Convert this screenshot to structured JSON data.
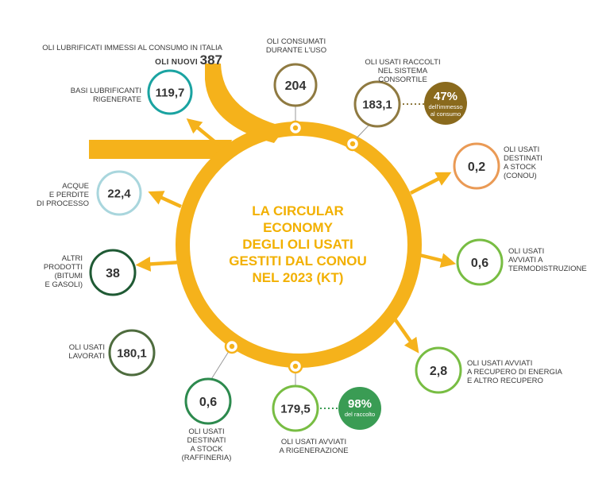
{
  "colors": {
    "ring": "#f5b21b",
    "gold_text": "#f2b000",
    "brown": "#8f7a41",
    "teal": "#1aa3a1",
    "light_blue": "#a9d6dd",
    "orange": "#ea9a55",
    "light_green": "#78bd43",
    "dark_green": "#1f5a34",
    "olive_green": "#4e6c3e",
    "green": "#2d8a4e",
    "badge_brown": "#8a6a1d",
    "badge_green": "#3a9c54"
  },
  "top_source": {
    "title": "OLI LUBRIFICATI IMMESSI AL CONSUMO IN ITALIA",
    "sub_label": "OLI NUOVI",
    "value": "387"
  },
  "center_title": [
    "LA CIRCULAR",
    "ECONOMY",
    "DEGLI OLI USATI",
    "GESTITI DAL CONOU",
    "NEL 2023 (Kt)"
  ],
  "nodes": [
    {
      "id": "consumati",
      "value": "204",
      "label": [
        "OLI CONSUMATI",
        "DURANTE L'USO"
      ],
      "color": "brown"
    },
    {
      "id": "raccolti",
      "value": "183,1",
      "label": [
        "OLI USATI RACCOLTI",
        "NEL SISTEMA",
        "CONSORTILE"
      ],
      "color": "brown"
    },
    {
      "id": "basi",
      "value": "119,7",
      "label": [
        "BASI LUBRIFICANTI",
        "RIGENERATE"
      ],
      "color": "teal"
    },
    {
      "id": "acque",
      "value": "22,4",
      "label": [
        "ACQUE",
        "E PERDITE",
        "DI PROCESSO"
      ],
      "color": "light_blue"
    },
    {
      "id": "stock_conou",
      "value": "0,2",
      "label": [
        "OLI USATI",
        "DESTINATI",
        "A STOCK",
        "(CONOU)"
      ],
      "color": "orange"
    },
    {
      "id": "termo",
      "value": "0,6",
      "label": [
        "OLI USATI",
        "AVVIATI A",
        "TERMODISTRUZIONE"
      ],
      "color": "light_green"
    },
    {
      "id": "altri",
      "value": "38",
      "label": [
        "ALTRI",
        "PRODOTTI",
        "(BITUMI",
        "E GASOLI)"
      ],
      "color": "dark_green"
    },
    {
      "id": "lavorati",
      "value": "180,1",
      "label": [
        "OLI USATI",
        "LAVORATI"
      ],
      "color": "olive_green"
    },
    {
      "id": "energia",
      "value": "2,8",
      "label": [
        "OLI USATI AVVIATI",
        "A RECUPERO DI ENERGIA",
        "E ALTRO RECUPERO"
      ],
      "color": "light_green"
    },
    {
      "id": "stock_raff",
      "value": "0,6",
      "label": [
        "OLI USATI",
        "DESTINATI",
        "A STOCK",
        "(RAFFINERIA)"
      ],
      "color": "green"
    },
    {
      "id": "rigenerazione",
      "value": "179,5",
      "label": [
        "OLI USATI AVVIATI",
        "A RIGENERAZIONE"
      ],
      "color": "light_green"
    }
  ],
  "badges": [
    {
      "id": "badge_raccolti",
      "value": "47%",
      "text": [
        "dell'immesso",
        "al consumo"
      ],
      "color": "badge_brown"
    },
    {
      "id": "badge_rigenerazione",
      "value": "98%",
      "text": [
        "del raccolto"
      ],
      "color": "badge_green"
    }
  ]
}
